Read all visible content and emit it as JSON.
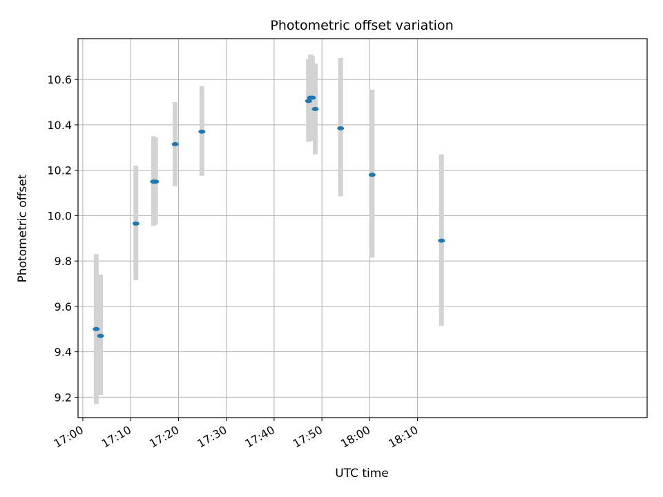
{
  "chart_data": {
    "type": "scatter",
    "title": "Photometric offset variation",
    "xlabel": "UTC time",
    "ylabel": "Photometric offset",
    "x_minutes_range": [
      -1,
      118
    ],
    "ylim": [
      9.11,
      10.78
    ],
    "grid": true,
    "x_ticks": [
      {
        "minutes": 0,
        "label": "17:00"
      },
      {
        "minutes": 10,
        "label": "17:10"
      },
      {
        "minutes": 20,
        "label": "17:20"
      },
      {
        "minutes": 30,
        "label": "17:30"
      },
      {
        "minutes": 40,
        "label": "17:40"
      },
      {
        "minutes": 50,
        "label": "17:50"
      },
      {
        "minutes": 60,
        "label": "18:00"
      },
      {
        "minutes": 70,
        "label": "18:10"
      }
    ],
    "y_ticks": [
      {
        "value": 9.2,
        "label": "9.2"
      },
      {
        "value": 9.4,
        "label": "9.4"
      },
      {
        "value": 9.6,
        "label": "9.6"
      },
      {
        "value": 9.8,
        "label": "9.8"
      },
      {
        "value": 10.0,
        "label": "10.0"
      },
      {
        "value": 10.2,
        "label": "10.2"
      },
      {
        "value": 10.4,
        "label": "10.4"
      },
      {
        "value": 10.6,
        "label": "10.6"
      }
    ],
    "marker_color": "#1f77b4",
    "errorbar_color": "#d3d3d3",
    "points": [
      {
        "t": 2.8,
        "value": 9.5,
        "lower": 9.17,
        "upper": 9.83
      },
      {
        "t": 3.7,
        "value": 9.47,
        "lower": 9.21,
        "upper": 9.74
      },
      {
        "t": 11.1,
        "value": 9.965,
        "lower": 9.715,
        "upper": 10.22
      },
      {
        "t": 14.8,
        "value": 10.15,
        "lower": 9.955,
        "upper": 10.35
      },
      {
        "t": 15.2,
        "value": 10.15,
        "lower": 9.96,
        "upper": 10.345
      },
      {
        "t": 19.3,
        "value": 10.315,
        "lower": 10.13,
        "upper": 10.5
      },
      {
        "t": 24.9,
        "value": 10.37,
        "lower": 10.175,
        "upper": 10.57
      },
      {
        "t": 47.2,
        "value": 10.505,
        "lower": 10.325,
        "upper": 10.69
      },
      {
        "t": 47.6,
        "value": 10.52,
        "lower": 10.33,
        "upper": 10.71
      },
      {
        "t": 48.0,
        "value": 10.52,
        "lower": 10.33,
        "upper": 10.705
      },
      {
        "t": 48.6,
        "value": 10.47,
        "lower": 10.27,
        "upper": 10.67
      },
      {
        "t": 53.9,
        "value": 10.385,
        "lower": 10.085,
        "upper": 10.695
      },
      {
        "t": 60.5,
        "value": 10.18,
        "lower": 9.815,
        "upper": 10.555
      },
      {
        "t": 75.0,
        "value": 9.89,
        "lower": 9.515,
        "upper": 10.27
      }
    ]
  }
}
